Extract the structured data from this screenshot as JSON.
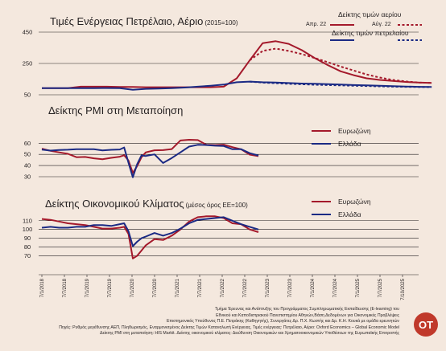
{
  "chart_data": [
    {
      "type": "line",
      "title": "Τιμές Ενέργειας Πετρέλαιο, Αέριο",
      "subtitle": "(2015=100)",
      "yticks": [
        50,
        250,
        450
      ],
      "ylim": [
        50,
        450
      ],
      "legend": {
        "gas_title": "Δείκτης τιμών αερίου",
        "oil_title": "Δείκτης τιμών πετρελαίου",
        "solid_label": "Απρ. 22",
        "dashed_label": "Αύγ. 22"
      },
      "x": [
        "2018-07",
        "2018-10",
        "2019-01",
        "2019-04",
        "2019-07",
        "2019-10",
        "2020-01",
        "2020-04",
        "2020-07",
        "2020-10",
        "2021-01",
        "2021-04",
        "2021-07",
        "2021-10",
        "2022-01",
        "2022-04",
        "2022-07",
        "2022-10",
        "2023-01",
        "2023-04",
        "2023-07",
        "2023-10",
        "2024-01",
        "2024-04",
        "2024-07",
        "2024-10",
        "2025-01",
        "2025-04",
        "2025-07",
        "2025-10",
        "2026-01"
      ],
      "series": [
        {
          "key": "gas_apr",
          "color": "#a4192b",
          "dash": false,
          "values": [
            92,
            92,
            92,
            102,
            102,
            102,
            100,
            100,
            98,
            98,
            98,
            98,
            98,
            98,
            102,
            155,
            270,
            380,
            392,
            375,
            335,
            285,
            240,
            200,
            175,
            155,
            145,
            138,
            132,
            128,
            126
          ]
        },
        {
          "key": "gas_aug",
          "color": "#a4192b",
          "dash": true,
          "values": [
            null,
            null,
            null,
            null,
            null,
            null,
            null,
            null,
            null,
            null,
            null,
            null,
            null,
            null,
            null,
            null,
            270,
            330,
            345,
            330,
            310,
            285,
            258,
            230,
            205,
            180,
            160,
            145,
            135,
            128,
            126
          ]
        },
        {
          "key": "oil_apr",
          "color": "#1b2a84",
          "dash": false,
          "values": [
            92,
            92,
            92,
            92,
            92,
            93,
            92,
            82,
            88,
            90,
            92,
            96,
            102,
            108,
            115,
            130,
            134,
            130,
            128,
            125,
            122,
            120,
            118,
            115,
            112,
            110,
            108,
            105,
            103,
            101,
            100
          ]
        },
        {
          "key": "oil_aug",
          "color": "#1b2a84",
          "dash": true,
          "values": [
            null,
            null,
            null,
            null,
            null,
            null,
            null,
            null,
            null,
            null,
            null,
            null,
            null,
            null,
            null,
            null,
            134,
            128,
            124,
            120,
            117,
            114,
            112,
            110,
            108,
            106,
            104,
            102,
            101,
            100,
            99
          ]
        }
      ]
    },
    {
      "type": "line",
      "title": "Δείκτης PMI στη Μεταποίηση",
      "yticks": [
        30,
        40,
        50,
        60
      ],
      "ylim": [
        30,
        66
      ],
      "legend": [
        "Ευρωζώνη",
        "Ελλάδα"
      ],
      "x": [
        "2018-07",
        "2018-09",
        "2018-11",
        "2019-01",
        "2019-03",
        "2019-05",
        "2019-07",
        "2019-09",
        "2019-11",
        "2020-01",
        "2020-02",
        "2020-03",
        "2020-04",
        "2020-05",
        "2020-06",
        "2020-07",
        "2020-09",
        "2020-11",
        "2021-01",
        "2021-03",
        "2021-05",
        "2021-07",
        "2021-09",
        "2021-11",
        "2022-01",
        "2022-03",
        "2022-05",
        "2022-07",
        "2022-09"
      ],
      "series": [
        {
          "name": "Ευρωζώνη",
          "color": "#a4192b",
          "values": [
            55.1,
            53.2,
            51.8,
            50.5,
            47.5,
            47.7,
            46.5,
            45.7,
            46.9,
            47.9,
            49.2,
            44.5,
            33.4,
            39.4,
            47.4,
            51.8,
            53.7,
            53.8,
            54.8,
            62.5,
            63.1,
            62.8,
            58.6,
            58.4,
            58.7,
            56.5,
            54.6,
            49.8,
            48.4
          ]
        },
        {
          "name": "Ελλάδα",
          "color": "#1b2a84",
          "values": [
            54.3,
            53.4,
            54.0,
            54.2,
            54.7,
            54.6,
            54.6,
            53.6,
            54.1,
            54.4,
            56.2,
            42.5,
            29.5,
            41.1,
            49.1,
            48.6,
            50.0,
            42.3,
            46.8,
            51.8,
            57.0,
            58.6,
            58.4,
            57.8,
            57.5,
            54.6,
            54.7,
            51.1,
            49.0
          ]
        }
      ]
    },
    {
      "type": "line",
      "title": "Δείκτης Οικονομικού Κλίματος",
      "subtitle": "(μέσος όρος ΕΕ=100)",
      "yticks": [
        70,
        80,
        90,
        100,
        110
      ],
      "ylim": [
        65,
        118
      ],
      "legend": [
        "Ευρωζώνη",
        "Ελλάδα"
      ],
      "x": [
        "2018-07",
        "2018-09",
        "2018-11",
        "2019-01",
        "2019-03",
        "2019-05",
        "2019-07",
        "2019-09",
        "2019-11",
        "2020-01",
        "2020-02",
        "2020-03",
        "2020-04",
        "2020-05",
        "2020-06",
        "2020-07",
        "2020-09",
        "2020-11",
        "2021-01",
        "2021-03",
        "2021-05",
        "2021-07",
        "2021-09",
        "2021-11",
        "2022-01",
        "2022-03",
        "2022-05",
        "2022-07",
        "2022-09"
      ],
      "series": [
        {
          "name": "Ευρωζώνη",
          "color": "#a4192b",
          "values": [
            112,
            111,
            109,
            107,
            106,
            105,
            103,
            101,
            101,
            102,
            103,
            95,
            67,
            70,
            76,
            82,
            89,
            88,
            93,
            100,
            109,
            114,
            115,
            115,
            113,
            107,
            106,
            100,
            97
          ]
        },
        {
          "name": "Ελλάδα",
          "color": "#1b2a84",
          "values": [
            102,
            103,
            102,
            102,
            103,
            103,
            105,
            105,
            104,
            106,
            107,
            98,
            81,
            86,
            90,
            92,
            96,
            93,
            96,
            101,
            107,
            111,
            112,
            113,
            114,
            110,
            106,
            103,
            100
          ]
        }
      ]
    }
  ],
  "x_axis_labels": [
    "7/1/2018",
    "7/7/2018",
    "7/1/2019",
    "7/7/2019",
    "7/1/2020",
    "7/7/2020",
    "7/1/2021",
    "7/7/2021",
    "7/1/2022",
    "7/7/2022",
    "7/1/2023",
    "7/7/2023",
    "7/1/2024",
    "7/7/2024",
    "7/1/2025",
    "7/7/2025",
    "7/10/2025"
  ],
  "source_lines": [
    "Τμήμα Έρευνας και Ανάπτυξης του Προγράμματος Συμπληρωματικής Εκπαίδευσης (E-learning) του",
    "Εθνικού και Καποδιστριακού Πανεπιστημίου Αθηνών,Βάση Δεδομένων για Οικονομικές Προβλέψεις",
    "Επιστημονικός Υπεύθυνος Π.Ε. Πετράκης (Καθηγητής), Συνεργάτες Δρ. Π.Χ. Κωστής και Δρ. Κ.Η. Κουκά με ομάδα ερευνητών",
    "Πηγές: Ρυθμός μεγέθυνσης ΑΕΠ, Πληθωρισμός, Εναρμονισμένος Δείκτης Τιμών Καταναλωτή Ενέργειας, Τιμές ενέργειας: Πετρέλαιο, Αέριο: Oxford Economics – Global Economic Model",
    "Δείκτης PMI στη μεταποίηση: HIS Markit. Δείκτης οικονομικού κλίματος: Διεύθυνση Οικονομικών και Χρηματοοικονομικών Υποθέσεων της Ευρωπαϊκής Επιτροπής"
  ],
  "logo_text": "ΟΤ"
}
